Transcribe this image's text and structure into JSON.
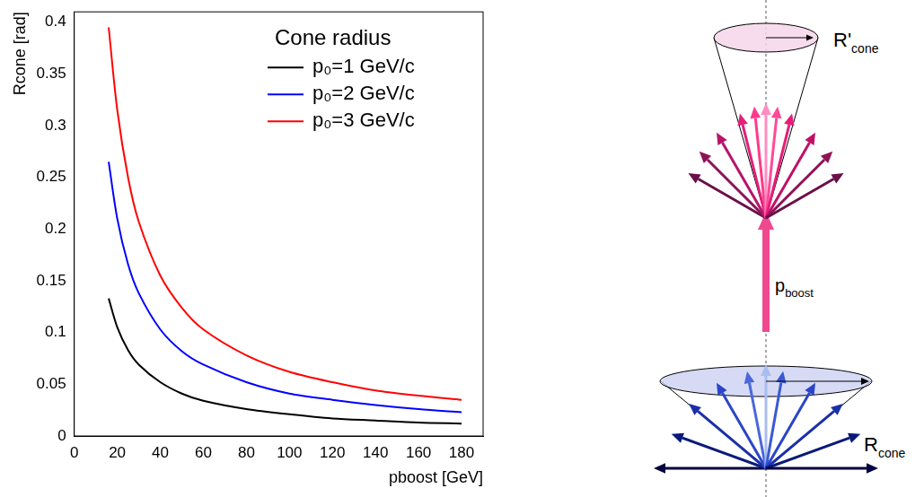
{
  "chart_data": {
    "type": "line",
    "x_label": "pboost [GeV]",
    "y_label": "Rcone [rad]",
    "legend_title": "Cone radius",
    "legend": "upper right",
    "grid": false,
    "xlim": [
      0,
      190
    ],
    "xticks": [
      0,
      20,
      40,
      60,
      80,
      100,
      120,
      140,
      160,
      180
    ],
    "ylim": [
      0,
      0.41
    ],
    "yticks": [
      0,
      0.05,
      0.1,
      0.15,
      0.2,
      0.25,
      0.3,
      0.35,
      0.4
    ],
    "x": [
      16,
      20,
      25,
      30,
      40,
      50,
      60,
      80,
      100,
      120,
      140,
      160,
      180
    ],
    "series": [
      {
        "name": "p₀=1 GeV/c",
        "color": "#000000",
        "line_style": "solid",
        "values": [
          0.133,
          0.105,
          0.083,
          0.069,
          0.052,
          0.041,
          0.034,
          0.026,
          0.021,
          0.017,
          0.015,
          0.013,
          0.012
        ]
      },
      {
        "name": "p₀=2 GeV/c",
        "color": "#0000ff",
        "line_style": "solid",
        "values": [
          0.265,
          0.21,
          0.166,
          0.138,
          0.103,
          0.082,
          0.069,
          0.052,
          0.041,
          0.035,
          0.03,
          0.026,
          0.023
        ]
      },
      {
        "name": "p₀=3 GeV/c",
        "color": "#ff0000",
        "line_style": "solid",
        "values": [
          0.395,
          0.315,
          0.25,
          0.207,
          0.155,
          0.124,
          0.103,
          0.078,
          0.062,
          0.052,
          0.044,
          0.039,
          0.035
        ]
      }
    ]
  },
  "diagram": {
    "top_cone_label": {
      "text": "R'",
      "subscript": "cone"
    },
    "boost_label": {
      "text": "p",
      "subscript": "boost"
    },
    "bottom_cone_label": {
      "text": "R",
      "subscript": "cone"
    }
  }
}
